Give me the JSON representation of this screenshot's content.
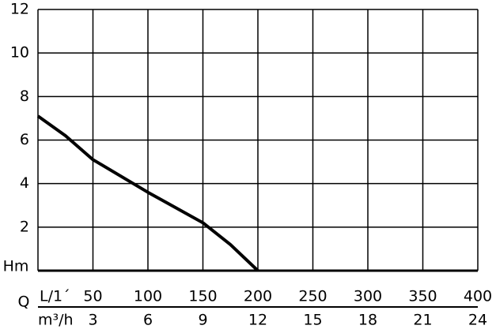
{
  "chart_data": {
    "type": "line",
    "y_label": "Hm",
    "x_axis_letter": "Q",
    "x_label": "L/1´",
    "x2_label": "m³/h",
    "x": [
      0,
      25,
      50,
      100,
      150,
      175,
      200
    ],
    "series": [
      {
        "color": "#000000",
        "values": [
          7.1,
          6.2,
          5.1,
          3.6,
          2.2,
          1.2,
          0
        ]
      }
    ],
    "xlim": [
      0,
      400
    ],
    "xticks": [
      50,
      100,
      150,
      200,
      250,
      300,
      350,
      400
    ],
    "x2lim": [
      0,
      24
    ],
    "x2ticks": [
      3,
      6,
      9,
      12,
      15,
      18,
      21,
      24
    ],
    "ylim": [
      0,
      12
    ],
    "yticks": [
      2,
      4,
      6,
      8,
      10,
      12
    ],
    "grid": true
  }
}
